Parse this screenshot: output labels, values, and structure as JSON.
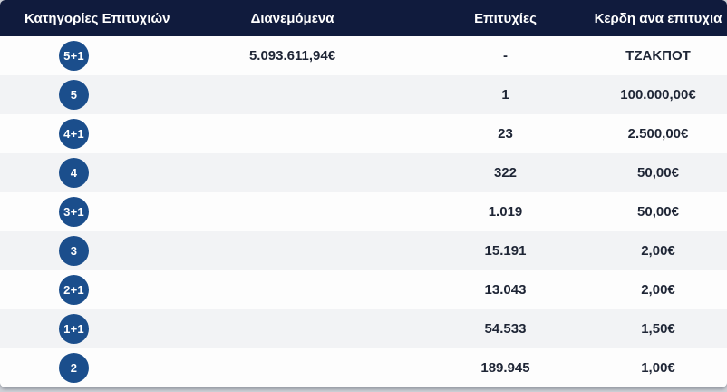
{
  "colors": {
    "header_bg": "#101b3d",
    "badge_bg": "#1b4e8c",
    "row_white": "#fdfdfd",
    "row_gray": "#f2f3f5",
    "cell_text": "#1e2535",
    "page_bg": "#ced1d7"
  },
  "table": {
    "header": {
      "category_label": "Κατηγορίες Επιτυχιών",
      "distributed_label": "Διανεμόμενα",
      "winners_label": "Επιτυχίες",
      "prize_label": "Κερδη ανα επιτυχια"
    },
    "rows": [
      {
        "category": "5+1",
        "distributed": "5.093.611,94€",
        "winners": "-",
        "prize": "ΤΖΑΚΠΟΤ"
      },
      {
        "category": "5",
        "distributed": "",
        "winners": "1",
        "prize": "100.000,00€"
      },
      {
        "category": "4+1",
        "distributed": "",
        "winners": "23",
        "prize": "2.500,00€"
      },
      {
        "category": "4",
        "distributed": "",
        "winners": "322",
        "prize": "50,00€"
      },
      {
        "category": "3+1",
        "distributed": "",
        "winners": "1.019",
        "prize": "50,00€"
      },
      {
        "category": "3",
        "distributed": "",
        "winners": "15.191",
        "prize": "2,00€"
      },
      {
        "category": "2+1",
        "distributed": "",
        "winners": "13.043",
        "prize": "2,00€"
      },
      {
        "category": "1+1",
        "distributed": "",
        "winners": "54.533",
        "prize": "1,50€"
      },
      {
        "category": "2",
        "distributed": "",
        "winners": "189.945",
        "prize": "1,00€"
      }
    ]
  }
}
